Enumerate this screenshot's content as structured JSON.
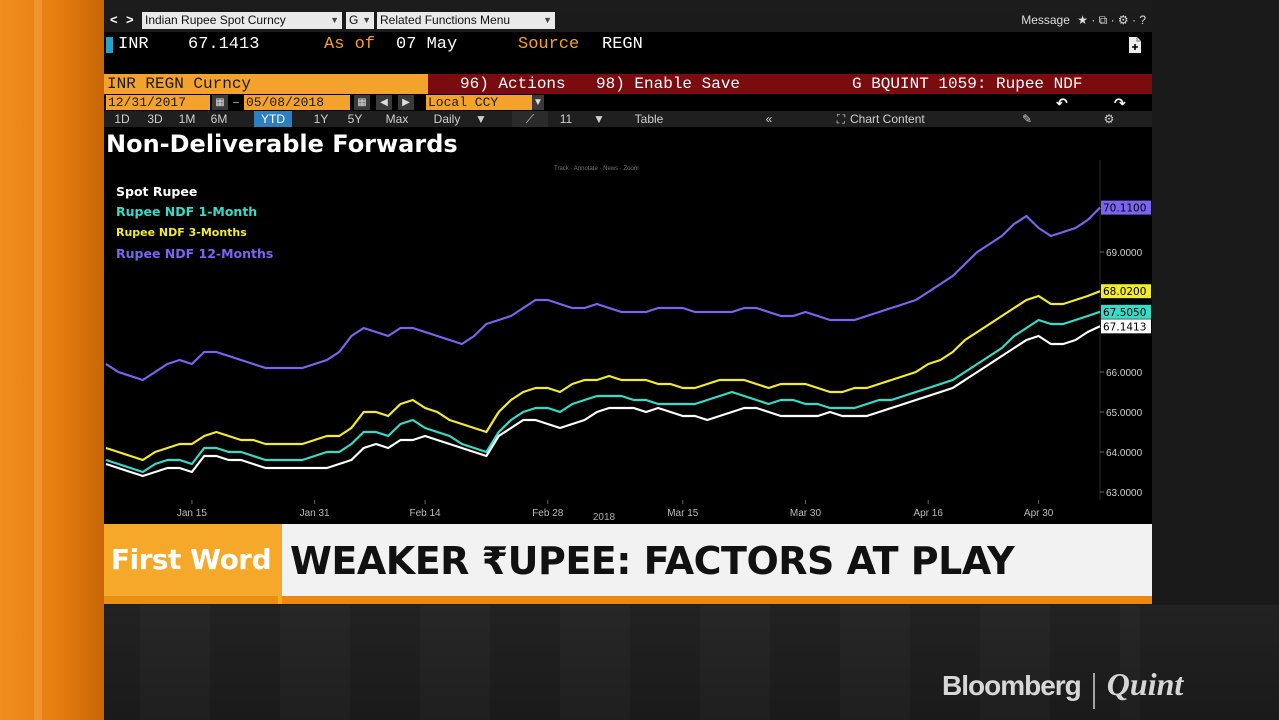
{
  "window": {
    "back_label": "<",
    "forward_label": ">",
    "security_field": "Indian Rupee Spot Curncy",
    "function_field": "G",
    "menu_field": "Related Functions Menu",
    "message_label": "Message",
    "message_icons": "★ · ⧉ · ⚙ · ?"
  },
  "quote": {
    "ticker": "INR",
    "price": "67.1413",
    "as_of_label": "As of",
    "as_of_date": "07 May",
    "source_label": "Source",
    "source_value": "REGN"
  },
  "command_bar": {
    "security": "INR REGN Curncy",
    "actions": "96) Actions",
    "enable_save": "98) Enable Save",
    "function_title": "G BQUINT 1059: Rupee NDF"
  },
  "date_bar": {
    "start_date": "12/31/2017",
    "end_date": "05/08/2018",
    "currency": "Local CCY",
    "undo_label": "↶",
    "redo_label": "↷"
  },
  "toolbar": {
    "ranges": [
      "1D",
      "3D",
      "1M",
      "6M",
      "YTD",
      "1Y",
      "5Y",
      "Max"
    ],
    "active_range": "YTD",
    "frequency": "Daily",
    "table_label": "Table",
    "chart_content_label": "Chart Content",
    "bars_label": "11"
  },
  "chart_data": {
    "type": "line",
    "title": "Non-Deliverable Forwards",
    "legend_top": "Track · Annotate · News · Zoom",
    "xlabel": "2018",
    "ylim": [
      62.8,
      71.2
    ],
    "x_ticks": [
      {
        "label": "Jan 15",
        "i": 7
      },
      {
        "label": "Jan 31",
        "i": 17
      },
      {
        "label": "Feb 14",
        "i": 26
      },
      {
        "label": "Feb 28",
        "i": 36
      },
      {
        "label": "Mar 15",
        "i": 47
      },
      {
        "label": "Mar 30",
        "i": 57
      },
      {
        "label": "Apr 16",
        "i": 67
      },
      {
        "label": "Apr 30",
        "i": 76
      }
    ],
    "y_ticks": [
      "69.0000",
      "66.0000",
      "65.0000",
      "64.0000",
      "63.0000"
    ],
    "y_tick_values": [
      69,
      66,
      65,
      64,
      63
    ],
    "n_points": 82,
    "series": [
      {
        "name": "Spot Rupee",
        "color": "#ffffff",
        "last_label": "67.1413",
        "last_value": 67.1413,
        "values": [
          63.7,
          63.6,
          63.5,
          63.4,
          63.5,
          63.6,
          63.6,
          63.5,
          63.9,
          63.9,
          63.8,
          63.8,
          63.7,
          63.6,
          63.6,
          63.6,
          63.6,
          63.6,
          63.6,
          63.7,
          63.8,
          64.1,
          64.2,
          64.1,
          64.3,
          64.3,
          64.4,
          64.3,
          64.2,
          64.1,
          64.0,
          63.9,
          64.4,
          64.6,
          64.8,
          64.8,
          64.7,
          64.6,
          64.7,
          64.8,
          65.0,
          65.1,
          65.1,
          65.1,
          65.0,
          65.1,
          65.0,
          64.9,
          64.9,
          64.8,
          64.9,
          65.0,
          65.1,
          65.1,
          65.0,
          64.9,
          64.9,
          64.9,
          64.9,
          65.0,
          64.9,
          64.9,
          64.9,
          65.0,
          65.1,
          65.2,
          65.3,
          65.4,
          65.5,
          65.6,
          65.8,
          66.0,
          66.2,
          66.4,
          66.6,
          66.8,
          66.9,
          66.7,
          66.7,
          66.8,
          67.0,
          67.1413
        ]
      },
      {
        "name": "Rupee NDF 1-Month",
        "color": "#35dcc8",
        "last_label": "67.5050",
        "last_value": 67.505,
        "values": [
          63.8,
          63.7,
          63.6,
          63.5,
          63.7,
          63.8,
          63.8,
          63.7,
          64.1,
          64.1,
          64.0,
          64.0,
          63.9,
          63.8,
          63.8,
          63.8,
          63.8,
          63.9,
          64.0,
          64.0,
          64.2,
          64.5,
          64.5,
          64.4,
          64.7,
          64.8,
          64.6,
          64.5,
          64.4,
          64.2,
          64.1,
          64.0,
          64.5,
          64.8,
          65.0,
          65.1,
          65.1,
          65.0,
          65.2,
          65.3,
          65.4,
          65.4,
          65.4,
          65.3,
          65.3,
          65.2,
          65.2,
          65.2,
          65.2,
          65.3,
          65.4,
          65.5,
          65.4,
          65.3,
          65.2,
          65.3,
          65.3,
          65.2,
          65.2,
          65.1,
          65.1,
          65.1,
          65.2,
          65.3,
          65.3,
          65.4,
          65.5,
          65.6,
          65.7,
          65.8,
          66.0,
          66.2,
          66.4,
          66.6,
          66.9,
          67.1,
          67.3,
          67.2,
          67.2,
          67.3,
          67.4,
          67.505
        ]
      },
      {
        "name": "Rupee NDF 3-Months",
        "color": "#f2ec2c",
        "last_label": "68.0200",
        "last_value": 68.02,
        "values": [
          64.1,
          64.0,
          63.9,
          63.8,
          64.0,
          64.1,
          64.2,
          64.2,
          64.4,
          64.5,
          64.4,
          64.3,
          64.3,
          64.2,
          64.2,
          64.2,
          64.2,
          64.3,
          64.4,
          64.4,
          64.6,
          65.0,
          65.0,
          64.9,
          65.2,
          65.3,
          65.1,
          65.0,
          64.8,
          64.7,
          64.6,
          64.5,
          65.0,
          65.3,
          65.5,
          65.6,
          65.6,
          65.5,
          65.7,
          65.8,
          65.8,
          65.9,
          65.8,
          65.8,
          65.8,
          65.7,
          65.7,
          65.6,
          65.6,
          65.7,
          65.8,
          65.8,
          65.8,
          65.7,
          65.6,
          65.7,
          65.7,
          65.7,
          65.6,
          65.5,
          65.5,
          65.6,
          65.6,
          65.7,
          65.8,
          65.9,
          66.0,
          66.2,
          66.3,
          66.5,
          66.8,
          67.0,
          67.2,
          67.4,
          67.6,
          67.8,
          67.9,
          67.7,
          67.7,
          67.8,
          67.9,
          68.02
        ]
      },
      {
        "name": "Rupee NDF 12-Months",
        "color": "#7b64ef",
        "last_label": "70.1100",
        "last_value": 70.11,
        "values": [
          66.2,
          66.0,
          65.9,
          65.8,
          66.0,
          66.2,
          66.3,
          66.2,
          66.5,
          66.5,
          66.4,
          66.3,
          66.2,
          66.1,
          66.1,
          66.1,
          66.1,
          66.2,
          66.3,
          66.5,
          66.9,
          67.1,
          67.0,
          66.9,
          67.1,
          67.1,
          67.0,
          66.9,
          66.8,
          66.7,
          66.9,
          67.2,
          67.3,
          67.4,
          67.6,
          67.8,
          67.8,
          67.7,
          67.6,
          67.6,
          67.7,
          67.6,
          67.5,
          67.5,
          67.5,
          67.6,
          67.6,
          67.6,
          67.5,
          67.5,
          67.5,
          67.5,
          67.6,
          67.6,
          67.5,
          67.4,
          67.4,
          67.5,
          67.4,
          67.3,
          67.3,
          67.3,
          67.4,
          67.5,
          67.6,
          67.7,
          67.8,
          68.0,
          68.2,
          68.4,
          68.7,
          69.0,
          69.2,
          69.4,
          69.7,
          69.9,
          69.6,
          69.4,
          69.5,
          69.6,
          69.8,
          70.11
        ]
      }
    ]
  },
  "lower_third": {
    "tag": "First Word",
    "headline": "WEAKER ₹UPEE: FACTORS AT PLAY"
  },
  "branding": {
    "left": "Bloomberg",
    "right": "Quint"
  }
}
